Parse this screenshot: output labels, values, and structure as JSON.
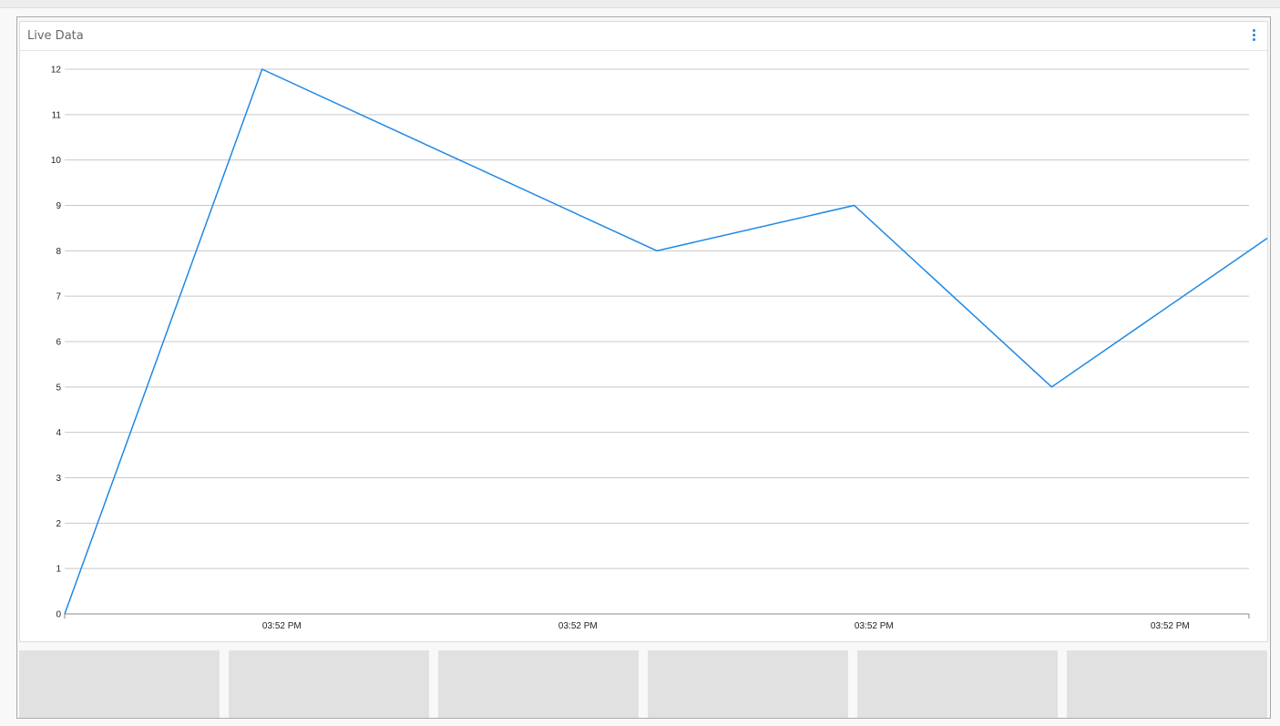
{
  "panel": {
    "title": "Live Data",
    "menu_icon": "vertical-ellipsis-icon"
  },
  "colors": {
    "line": "#1e88e5",
    "grid": "#c8c8c8",
    "axis": "#888888"
  },
  "chart_data": {
    "type": "line",
    "title": "Live Data",
    "x": [
      0,
      1,
      2,
      3,
      4,
      5,
      6
    ],
    "values": [
      0,
      12,
      10,
      8,
      9,
      5,
      8
    ],
    "xlim": [
      0,
      6
    ],
    "ylim": [
      0,
      12
    ],
    "yticks": [
      0,
      1,
      2,
      3,
      4,
      5,
      6,
      7,
      8,
      9,
      10,
      11,
      12
    ],
    "xtick_labels": [
      "03:52 PM",
      "03:52 PM",
      "03:52 PM",
      "03:52 PM"
    ],
    "xtick_positions": [
      1.1,
      2.6,
      4.1,
      5.6
    ],
    "grid": true,
    "legend": "none"
  },
  "tiles": [
    {},
    {},
    {},
    {},
    {},
    {}
  ]
}
